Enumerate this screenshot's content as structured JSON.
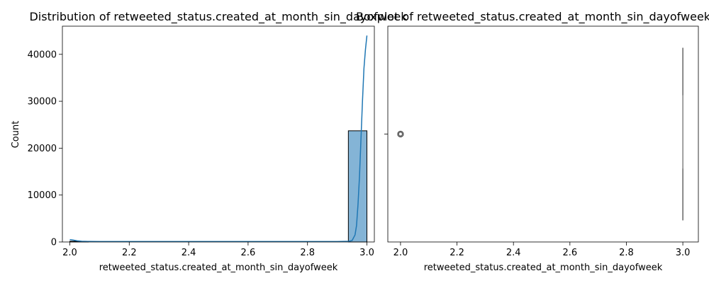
{
  "chart_data": [
    {
      "type": "histogram",
      "title": "Distribution of retweeted_status.created_at_month_sin_dayofweek",
      "xlabel": "retweeted_status.created_at_month_sin_dayofweek",
      "ylabel": "Count",
      "xlim": [
        1.975,
        3.025
      ],
      "ylim": [
        0,
        46000
      ],
      "xticks": [
        "2.0",
        "2.2",
        "2.4",
        "2.6",
        "2.8",
        "3.0"
      ],
      "yticks": [
        "0",
        "10000",
        "20000",
        "30000",
        "40000"
      ],
      "bins": [
        {
          "x0": 2.0,
          "x1": 2.0625,
          "count": 150
        },
        {
          "x0": 2.9375,
          "x1": 3.0,
          "count": 23700
        }
      ],
      "bar_color": "#1f77b4",
      "kde": {
        "color": "#1f77b4",
        "points": [
          [
            2.0,
            500
          ],
          [
            2.012,
            400
          ],
          [
            2.025,
            250
          ],
          [
            2.04,
            150
          ],
          [
            2.06,
            110
          ],
          [
            2.1,
            100
          ],
          [
            2.5,
            100
          ],
          [
            2.9,
            100
          ],
          [
            2.94,
            150
          ],
          [
            2.95,
            300
          ],
          [
            2.96,
            1500
          ],
          [
            2.965,
            3500
          ],
          [
            2.97,
            8000
          ],
          [
            2.975,
            14000
          ],
          [
            2.98,
            22000
          ],
          [
            2.985,
            30000
          ],
          [
            2.99,
            37000
          ],
          [
            2.995,
            41000
          ],
          [
            3.0,
            44000
          ]
        ]
      }
    },
    {
      "type": "box",
      "title": "Boxplot of retweeted_status.created_at_month_sin_dayofweek",
      "xlabel": "retweeted_status.created_at_month_sin_dayofweek",
      "xlim": [
        1.955,
        3.055
      ],
      "xticks": [
        "2.0",
        "2.2",
        "2.4",
        "2.6",
        "2.8",
        "3.0"
      ],
      "box": {
        "q1": 3.0,
        "median": 3.0,
        "q3": 3.0,
        "whisker_low": 3.0,
        "whisker_high": 3.0
      },
      "outliers": [
        2.0
      ],
      "color": "#1f77b4"
    }
  ]
}
